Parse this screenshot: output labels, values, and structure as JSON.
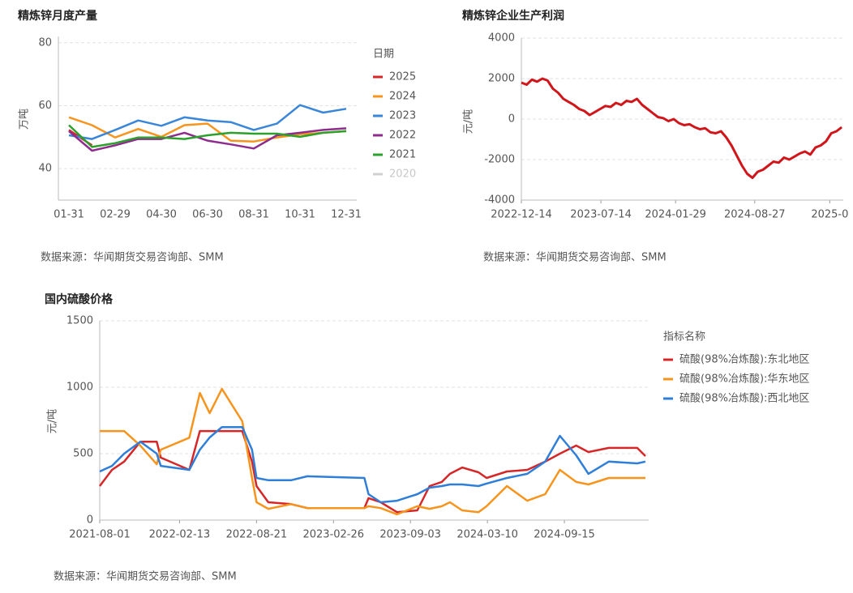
{
  "chart_data": [
    {
      "type": "line",
      "title": "精炼锌月度产量",
      "y_label": "万吨",
      "legend_title": "日期",
      "source": "数据来源：华闻期货交易咨询部、SMM",
      "categories": [
        "01-31",
        null,
        "02-29",
        null,
        "04-30",
        null,
        "06-30",
        null,
        "08-31",
        null,
        "10-31",
        null,
        "12-31"
      ],
      "ylim": [
        30,
        82
      ],
      "yticks": [
        40,
        60,
        80
      ],
      "grid": true,
      "series": [
        {
          "name": "2025",
          "color": "#d62728",
          "values": [
            52.3,
            47.4,
            null,
            null,
            null,
            null,
            null,
            null,
            null,
            null,
            null,
            null,
            null
          ]
        },
        {
          "name": "2024",
          "color": "#f7941d",
          "values": [
            56.3,
            53.8,
            49.9,
            52.6,
            50.1,
            53.8,
            54.3,
            48.9,
            48.6,
            49.9,
            50.9,
            51.4,
            51.9
          ]
        },
        {
          "name": "2023",
          "color": "#3a86d8",
          "values": [
            50.6,
            49.4,
            52.3,
            55.3,
            53.6,
            56.3,
            55.3,
            54.8,
            52.3,
            54.3,
            60.2,
            57.8,
            59
          ]
        },
        {
          "name": "2022",
          "color": "#8e2c8e",
          "values": [
            51.9,
            45.7,
            47.4,
            49.4,
            49.4,
            51.4,
            48.9,
            47.7,
            46.4,
            50.6,
            51.4,
            52.3,
            52.8
          ]
        },
        {
          "name": "2021",
          "color": "#2ca02c",
          "values": [
            53.8,
            46.9,
            48.1,
            49.9,
            49.9,
            49.4,
            50.6,
            51.4,
            51.1,
            51.1,
            50.1,
            51.4,
            51.9
          ]
        },
        {
          "name": "2020",
          "color": "#d0d0d0",
          "hidden": true,
          "values": [
            null,
            null,
            null,
            null,
            null,
            null,
            null,
            null,
            null,
            null,
            null,
            null,
            null
          ]
        }
      ]
    },
    {
      "type": "line",
      "title": "精炼锌企业生产利润",
      "y_label": "元/吨",
      "source": "数据来源：华闻期货交易咨询部、SMM",
      "x": [
        "2022-12-14",
        "2022-12-28",
        "2023-01-11",
        "2023-01-25",
        "2023-02-08",
        "2023-02-22",
        "2023-03-08",
        "2023-03-22",
        "2023-04-05",
        "2023-04-19",
        "2023-05-03",
        "2023-05-17",
        "2023-05-31",
        "2023-06-14",
        "2023-06-28",
        "2023-07-12",
        "2023-07-26",
        "2023-08-09",
        "2023-08-23",
        "2023-09-06",
        "2023-09-20",
        "2023-10-04",
        "2023-10-18",
        "2023-11-01",
        "2023-11-15",
        "2023-11-29",
        "2023-12-13",
        "2023-12-27",
        "2024-01-10",
        "2024-01-24",
        "2024-02-07",
        "2024-02-21",
        "2024-03-06",
        "2024-03-20",
        "2024-04-03",
        "2024-04-17",
        "2024-05-01",
        "2024-05-15",
        "2024-05-29",
        "2024-06-12",
        "2024-06-26",
        "2024-07-10",
        "2024-07-24",
        "2024-08-07",
        "2024-08-21",
        "2024-09-04",
        "2024-09-18",
        "2024-10-02",
        "2024-10-16",
        "2024-10-30",
        "2024-11-13",
        "2024-11-27",
        "2024-12-11",
        "2024-12-25",
        "2025-01-08",
        "2025-01-22",
        "2025-02-05",
        "2025-02-19",
        "2025-03-05",
        "2025-03-19",
        "2025-04-02",
        "2025-04-16"
      ],
      "xlim": [
        "2022-12-14",
        "2025-04-20"
      ],
      "xticks": [
        "2022-12-14",
        "2023-07-14",
        "2024-01-29",
        "2024-08-27",
        {
          "value": "2025-03-15",
          "label": "2025-0"
        }
      ],
      "ylim": [
        -4000,
        4000
      ],
      "yticks": [
        -4000,
        -2000,
        0,
        2000,
        4000
      ],
      "grid": true,
      "series": [
        {
          "name": "利润",
          "color": "#d0161b",
          "values": [
            1800,
            1700,
            1950,
            1850,
            2000,
            1900,
            1500,
            1300,
            1000,
            850,
            700,
            500,
            400,
            200,
            350,
            500,
            650,
            600,
            800,
            700,
            900,
            850,
            1000,
            700,
            500,
            300,
            100,
            50,
            -100,
            0,
            -200,
            -300,
            -250,
            -400,
            -500,
            -450,
            -650,
            -700,
            -600,
            -900,
            -1300,
            -1800,
            -2300,
            -2700,
            -2900,
            -2600,
            -2500,
            -2300,
            -2100,
            -2150,
            -1900,
            -2000,
            -1850,
            -1700,
            -1600,
            -1750,
            -1400,
            -1300,
            -1100,
            -700,
            -600,
            -400
          ]
        }
      ]
    },
    {
      "type": "line",
      "title": "国内硫酸价格",
      "y_label": "元/吨",
      "legend_title": "指标名称",
      "source": "数据来源：华闻期货交易咨询部、SMM",
      "x": [
        "2021-08-01",
        "2021-08-31",
        "2021-09-30",
        "2021-11-09",
        "2021-12-19",
        "2021-12-29",
        "2022-03-09",
        "2022-04-04",
        "2022-04-28",
        "2022-05-28",
        "2022-07-17",
        "2022-08-10",
        "2022-08-21",
        "2022-09-19",
        "2022-11-14",
        "2022-12-24",
        "2023-05-13",
        "2023-05-23",
        "2023-06-22",
        "2023-08-01",
        "2023-09-20",
        "2023-10-20",
        "2023-11-19",
        "2023-12-09",
        "2024-01-08",
        "2024-02-17",
        "2024-03-08",
        "2024-04-27",
        "2024-06-16",
        "2024-07-30",
        "2024-09-04",
        "2024-10-14",
        "2024-11-13",
        "2025-01-02",
        "2025-03-13",
        "2025-04-02"
      ],
      "xlim": [
        "2021-08-01",
        "2025-04-10"
      ],
      "xticks": [
        "2021-08-01",
        "2022-02-13",
        "2022-08-21",
        "2023-02-26",
        "2023-09-03",
        "2024-03-10",
        "2024-09-15"
      ],
      "ylim": [
        0,
        1500
      ],
      "yticks": [
        0,
        500,
        1000,
        1500
      ],
      "grid": true,
      "series": [
        {
          "name": "硫酸(98%冶炼酸):东北地区",
          "color": "#d62728",
          "values": [
            256,
            378,
            440,
            590,
            590,
            470,
            378,
            670,
            670,
            670,
            670,
            440,
            256,
            134,
            120,
            90,
            90,
            165,
            134,
            60,
            73,
            256,
            287,
            348,
            396,
            360,
            317,
            366,
            378,
            440,
            500,
            561,
            512,
            543,
            543,
            482
          ]
        },
        {
          "name": "硫酸(98%冶炼酸):华东地区",
          "color": "#f7941d",
          "values": [
            670,
            670,
            670,
            560,
            420,
            530,
            620,
            957,
            805,
            988,
            744,
            317,
            134,
            85,
            120,
            90,
            90,
            104,
            90,
            43,
            104,
            85,
            104,
            134,
            73,
            60,
            104,
            256,
            146,
            195,
            378,
            287,
            268,
            317,
            317,
            317
          ]
        },
        {
          "name": "硫酸(98%冶炼酸):西北地区",
          "color": "#2f7ed8",
          "values": [
            366,
            408,
            500,
            590,
            500,
            408,
            378,
            530,
            622,
            700,
            700,
            530,
            317,
            300,
            300,
            330,
            317,
            195,
            134,
            146,
            195,
            244,
            256,
            268,
            268,
            256,
            275,
            317,
            348,
            440,
            634,
            488,
            348,
            440,
            427,
            440
          ]
        }
      ]
    }
  ]
}
